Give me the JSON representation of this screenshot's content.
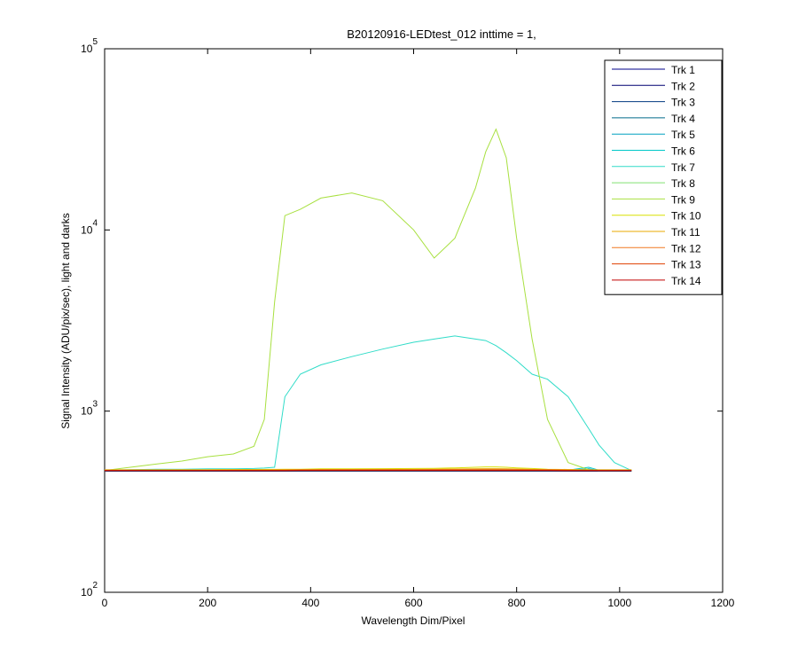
{
  "chart_data": {
    "type": "line",
    "title": "B20120916-LEDtest_012 inttime = 1,",
    "x_label": "Wavelength Dim/Pixel",
    "y_label": "Signal Intensity (ADU/pix/sec), light and darks",
    "log_y": true,
    "legend_position": "upper right",
    "xlim": [
      0,
      1200
    ],
    "xticks": [
      0,
      200,
      400,
      600,
      800,
      1000,
      1200
    ],
    "ylim": [
      100,
      100000
    ],
    "yticks": [
      {
        "value": 100,
        "label": "10",
        "exponent": "2"
      },
      {
        "value": 1000,
        "label": "10",
        "exponent": "3"
      },
      {
        "value": 10000,
        "label": "10",
        "exponent": "4"
      },
      {
        "value": 100000,
        "label": "10",
        "exponent": "5"
      }
    ],
    "x": [
      0,
      50,
      100,
      150,
      200,
      250,
      290,
      310,
      330,
      350,
      380,
      420,
      480,
      540,
      600,
      640,
      680,
      720,
      740,
      760,
      780,
      800,
      830,
      860,
      900,
      940,
      960,
      990,
      1023
    ],
    "series": [
      {
        "name": "Trk 1",
        "color": "#00008b",
        "values": [
          468,
          468,
          468,
          468,
          468,
          468,
          468,
          468,
          468,
          468,
          468,
          468,
          468,
          468,
          468,
          468,
          468,
          468,
          468,
          468,
          468,
          468,
          468,
          468,
          468,
          468,
          468,
          468,
          468
        ]
      },
      {
        "name": "Trk 2",
        "color": "#000070",
        "values": [
          466,
          466,
          466,
          466,
          466,
          466,
          466,
          466,
          466,
          466,
          466,
          466,
          466,
          466,
          466,
          466,
          466,
          466,
          466,
          466,
          466,
          466,
          466,
          466,
          466,
          466,
          466,
          466,
          466
        ]
      },
      {
        "name": "Trk 3",
        "color": "#003a80",
        "values": [
          467,
          467,
          467,
          467,
          467,
          467,
          467,
          467,
          467,
          467,
          467,
          467,
          467,
          467,
          467,
          467,
          467,
          467,
          467,
          467,
          467,
          467,
          467,
          467,
          467,
          467,
          467,
          467,
          467
        ]
      },
      {
        "name": "Trk 4",
        "color": "#006a8a",
        "values": [
          469,
          469,
          469,
          469,
          469,
          469,
          469,
          469,
          469,
          469,
          469,
          469,
          469,
          469,
          469,
          469,
          469,
          469,
          469,
          469,
          469,
          469,
          469,
          469,
          469,
          469,
          469,
          469,
          469
        ]
      },
      {
        "name": "Trk 5",
        "color": "#00a0c0",
        "values": [
          470,
          470,
          470,
          470,
          470,
          470,
          470,
          470,
          470,
          470,
          470,
          470,
          470,
          470,
          470,
          470,
          470,
          470,
          470,
          470,
          470,
          470,
          470,
          470,
          470,
          480,
          470,
          470,
          470
        ]
      },
      {
        "name": "Trk 6",
        "color": "#00c8c8",
        "values": [
          472,
          472,
          472,
          472,
          472,
          472,
          472,
          472,
          472,
          472,
          472,
          472,
          472,
          472,
          472,
          472,
          472,
          472,
          472,
          472,
          472,
          472,
          472,
          472,
          472,
          490,
          472,
          472,
          472
        ]
      },
      {
        "name": "Trk 7",
        "color": "#30dcc8",
        "values": [
          470,
          475,
          478,
          478,
          480,
          480,
          482,
          485,
          490,
          1200,
          1600,
          1800,
          2000,
          2200,
          2400,
          2500,
          2600,
          2500,
          2450,
          2300,
          2100,
          1900,
          1600,
          1500,
          1200,
          800,
          650,
          520,
          470
        ]
      },
      {
        "name": "Trk 8",
        "color": "#80e070",
        "values": [
          474,
          474,
          474,
          474,
          474,
          474,
          474,
          474,
          474,
          474,
          476,
          476,
          476,
          476,
          476,
          476,
          476,
          476,
          476,
          476,
          476,
          476,
          476,
          476,
          474,
          474,
          474,
          474,
          474
        ]
      },
      {
        "name": "Trk 9",
        "color": "#a8e040",
        "values": [
          470,
          490,
          510,
          530,
          560,
          580,
          640,
          900,
          4000,
          12000,
          13000,
          15000,
          16000,
          14500,
          10000,
          7000,
          9000,
          17000,
          27000,
          36000,
          25000,
          9000,
          2500,
          900,
          520,
          475,
          470,
          470,
          470
        ]
      },
      {
        "name": "Trk 10",
        "color": "#d8e000",
        "values": [
          474,
          474,
          474,
          475,
          475,
          476,
          476,
          477,
          477,
          478,
          478,
          480,
          480,
          481,
          482,
          483,
          486,
          490,
          492,
          492,
          490,
          486,
          482,
          478,
          476,
          474,
          474,
          474,
          474
        ]
      },
      {
        "name": "Trk 11",
        "color": "#e8a800",
        "values": [
          473,
          473,
          473,
          473,
          473,
          474,
          474,
          474,
          474,
          475,
          475,
          476,
          476,
          477,
          477,
          478,
          479,
          480,
          481,
          481,
          480,
          479,
          477,
          476,
          475,
          473,
          473,
          473,
          473
        ]
      },
      {
        "name": "Trk 12",
        "color": "#f07820",
        "values": [
          472,
          472,
          472,
          472,
          472,
          472,
          472,
          472,
          473,
          473,
          474,
          474,
          475,
          475,
          475,
          476,
          476,
          477,
          477,
          477,
          477,
          476,
          475,
          474,
          473,
          472,
          472,
          472,
          472
        ]
      },
      {
        "name": "Trk 13",
        "color": "#e04000",
        "values": [
          471,
          471,
          471,
          471,
          471,
          471,
          471,
          471,
          471,
          471,
          472,
          472,
          472,
          472,
          472,
          472,
          472,
          472,
          472,
          472,
          472,
          472,
          472,
          472,
          471,
          471,
          471,
          471,
          471
        ]
      },
      {
        "name": "Trk 14",
        "color": "#c00000",
        "values": [
          469,
          469,
          469,
          469,
          469,
          469,
          469,
          469,
          469,
          469,
          470,
          470,
          470,
          470,
          470,
          470,
          470,
          470,
          470,
          470,
          470,
          470,
          470,
          470,
          469,
          469,
          469,
          469,
          469
        ]
      }
    ]
  }
}
